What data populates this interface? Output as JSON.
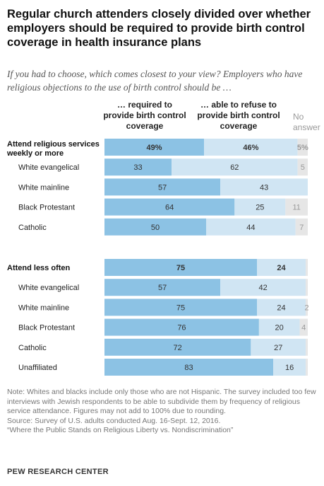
{
  "title": "Regular church attenders closely divided over whether employers should be required to provide birth control coverage in health insurance plans",
  "subtitle": "If you had to choose, which comes closest to your view? Employers who have religious objections to the use of birth control should be …",
  "columns": {
    "required": "… required to provide birth control coverage",
    "refuse": "… able to refuse to provide birth control coverage",
    "no_answer": "No answer"
  },
  "colors": {
    "required": "#8cc2e4",
    "refuse": "#d0e5f3",
    "no_answer": "#e6e6e6",
    "text_required": "#333333",
    "text_refuse": "#333333",
    "text_no_answer": "#999999"
  },
  "chart_data": {
    "type": "bar",
    "orientation": "horizontal",
    "stacked": true,
    "xlim": [
      0,
      100
    ],
    "series": [
      {
        "name": "… required to provide birth control coverage"
      },
      {
        "name": "… able to refuse to provide birth control coverage"
      },
      {
        "name": "No answer"
      }
    ],
    "groups": [
      {
        "rows": [
          {
            "label": "Attend religious services weekly or more",
            "header": true,
            "values": [
              49,
              46,
              5
            ],
            "labels": [
              "49%",
              "46%",
              "5%"
            ]
          },
          {
            "label": "White evangelical",
            "header": false,
            "values": [
              33,
              62,
              5
            ],
            "labels": [
              "33",
              "62",
              "5"
            ]
          },
          {
            "label": "White mainline",
            "header": false,
            "values": [
              57,
              43,
              0
            ],
            "labels": [
              "57",
              "43",
              ""
            ]
          },
          {
            "label": "Black Protestant",
            "header": false,
            "values": [
              64,
              25,
              11
            ],
            "labels": [
              "64",
              "25",
              "11"
            ]
          },
          {
            "label": "Catholic",
            "header": false,
            "values": [
              50,
              44,
              7
            ],
            "labels": [
              "50",
              "44",
              "7"
            ]
          }
        ]
      },
      {
        "rows": [
          {
            "label": "Attend less often",
            "header": true,
            "values": [
              75,
              24,
              1
            ],
            "labels": [
              "75",
              "24",
              ""
            ]
          },
          {
            "label": "White evangelical",
            "header": false,
            "values": [
              57,
              42,
              1
            ],
            "labels": [
              "57",
              "42",
              ""
            ]
          },
          {
            "label": "White mainline",
            "header": false,
            "values": [
              75,
              24,
              2
            ],
            "labels": [
              "75",
              "24",
              "2"
            ]
          },
          {
            "label": "Black Protestant",
            "header": false,
            "values": [
              76,
              20,
              4
            ],
            "labels": [
              "76",
              "20",
              "4"
            ]
          },
          {
            "label": "Catholic",
            "header": false,
            "values": [
              72,
              27,
              1
            ],
            "labels": [
              "72",
              "27",
              ""
            ]
          },
          {
            "label": "Unaffiliated",
            "header": false,
            "values": [
              83,
              16,
              1
            ],
            "labels": [
              "83",
              "16",
              ""
            ]
          }
        ]
      }
    ]
  },
  "notes": {
    "note": "Note: Whites and blacks include only those who are not Hispanic. The survey included too few interviews with Jewish respondents to be able to subdivide them by frequency of religious service attendance. Figures may not add to 100% due to rounding.",
    "source": "Source: Survey of U.S. adults conducted Aug. 16-Sept. 12, 2016.",
    "report": "“Where the Public Stands on Religious Liberty vs. Nondiscrimination”"
  },
  "attribution": "PEW RESEARCH CENTER"
}
